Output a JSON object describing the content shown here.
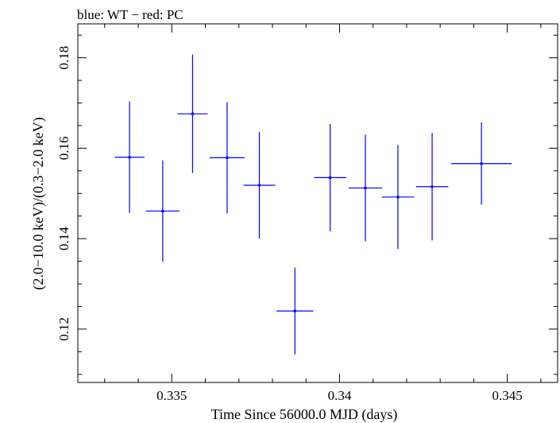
{
  "chart_data": {
    "type": "scatter",
    "title": "blue: WT − red: PC",
    "xlabel": "Time Since 56000.0 MJD (days)",
    "ylabel": "(2.0−10.0 keV)/(0.3−2.0 keV)",
    "xlim": [
      0.3322,
      0.3465
    ],
    "ylim": [
      0.1082,
      0.1875
    ],
    "x_ticks": [
      0.335,
      0.34,
      0.345
    ],
    "x_tick_labels": [
      "0.335",
      "0.34",
      "0.345"
    ],
    "y_ticks": [
      0.12,
      0.14,
      0.16,
      0.18
    ],
    "y_tick_labels": [
      "0.12",
      "0.14",
      "0.16",
      "0.18"
    ],
    "grid": false,
    "series": [
      {
        "name": "WT",
        "color": "#0000ff",
        "points": [
          {
            "x": 0.33374,
            "xerr": 0.00044,
            "y": 0.158,
            "yerr": 0.0123
          },
          {
            "x": 0.33473,
            "xerr": 0.0005,
            "y": 0.1461,
            "yerr": 0.0112
          },
          {
            "x": 0.33562,
            "xerr": 0.00045,
            "y": 0.1676,
            "yerr": 0.0131
          },
          {
            "x": 0.33665,
            "xerr": 0.00052,
            "y": 0.1579,
            "yerr": 0.0123
          },
          {
            "x": 0.33761,
            "xerr": 0.00047,
            "y": 0.1518,
            "yerr": 0.0118
          },
          {
            "x": 0.33867,
            "xerr": 0.00055,
            "y": 0.124,
            "yerr": 0.0096
          },
          {
            "x": 0.33972,
            "xerr": 0.00048,
            "y": 0.1535,
            "yerr": 0.0119
          },
          {
            "x": 0.34077,
            "xerr": 0.0005,
            "y": 0.1512,
            "yerr": 0.0118
          },
          {
            "x": 0.34174,
            "xerr": 0.00048,
            "y": 0.1492,
            "yerr": 0.0115
          },
          {
            "x": 0.34276,
            "xerr": 0.00048,
            "y": 0.1515,
            "yerr": 0.0119
          },
          {
            "x": 0.34423,
            "xerr": 0.0009,
            "y": 0.1566,
            "yerr": 0.0091
          }
        ]
      }
    ]
  }
}
